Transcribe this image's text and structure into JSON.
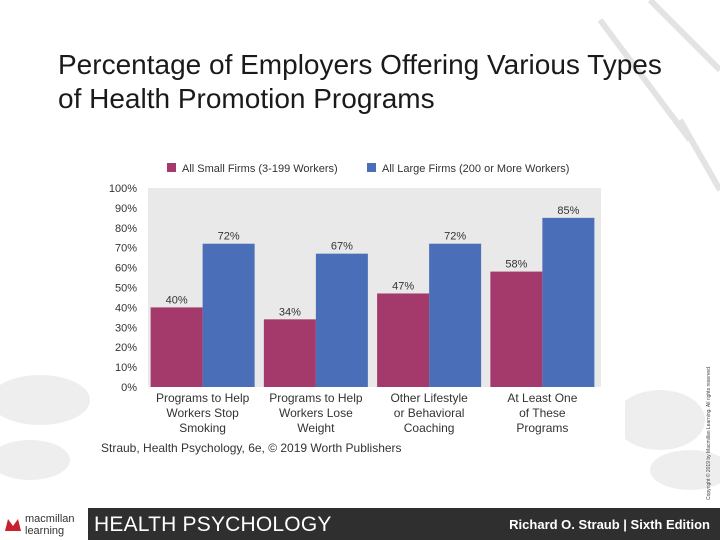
{
  "slide": {
    "title": "Percentage of Employers Offering Various Types of Health Promotion Programs"
  },
  "chart_data": {
    "type": "bar",
    "categories": [
      [
        "Programs to Help",
        "Workers Stop",
        "Smoking"
      ],
      [
        "Programs to Help",
        "Workers Lose",
        "Weight"
      ],
      [
        "Other Lifestyle",
        "or Behavioral",
        "Coaching"
      ],
      [
        "At Least One",
        "of These",
        "Programs"
      ]
    ],
    "series": [
      {
        "name": "All Small Firms (3-199 Workers)",
        "values": [
          40,
          34,
          47,
          58
        ],
        "labels": [
          "40%",
          "34%",
          "47%",
          "58%"
        ],
        "color": "#a33a6b"
      },
      {
        "name": "All Large Firms (200 or More Workers)",
        "values": [
          72,
          67,
          72,
          85
        ],
        "labels": [
          "72%",
          "67%",
          "72%",
          "85%"
        ],
        "color": "#4a6fb8"
      }
    ],
    "yticks": [
      "0%",
      "10%",
      "20%",
      "30%",
      "40%",
      "50%",
      "60%",
      "70%",
      "80%",
      "90%",
      "100%"
    ],
    "ylim": [
      0,
      100
    ],
    "grid": false,
    "legend": "top",
    "source": "Straub, Health Psychology, 6e, © 2019 Worth Publishers"
  },
  "copyright": "Copyright © 2019 by Macmillan Learning. All rights reserved.",
  "footer": {
    "logo_line1": "macmillan",
    "logo_line2": "learning",
    "title": "HEALTH PSYCHOLOGY",
    "author": "Richard O. Straub | Sixth Edition"
  },
  "colors": {
    "footer_bg": "#2f2f2f",
    "axis_panel": "#e9e9e9",
    "logo_red": "#c8202f"
  }
}
